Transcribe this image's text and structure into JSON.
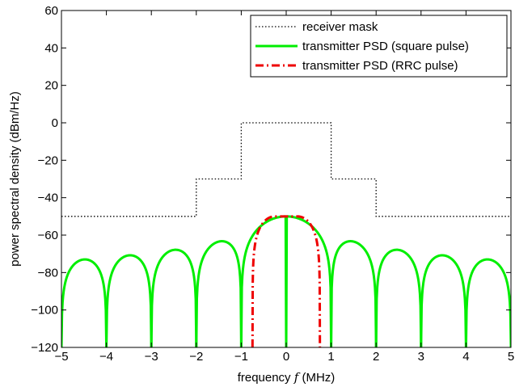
{
  "chart_data": {
    "type": "line",
    "title": "",
    "xlabel_prefix": "frequency ",
    "xlabel_var": "f",
    "xlabel_suffix": " (MHz)",
    "ylabel": "power spectral density (dBm/Hz)",
    "xlim": [
      -5,
      5
    ],
    "ylim": [
      -120,
      60
    ],
    "xticks": [
      -5,
      -4,
      -3,
      -2,
      -1,
      0,
      1,
      2,
      3,
      4,
      5
    ],
    "yticks": [
      -120,
      -100,
      -80,
      -60,
      -40,
      -20,
      0,
      20,
      40,
      60
    ],
    "x_tick_labels": [
      "−5",
      "−4",
      "−3",
      "−2",
      "−1",
      "0",
      "1",
      "2",
      "3",
      "4",
      "5"
    ],
    "y_tick_labels": [
      "−120",
      "−100",
      "−80",
      "−60",
      "−40",
      "−20",
      "0",
      "20",
      "40",
      "60"
    ],
    "grid": false,
    "legend_position": "top-right",
    "series": [
      {
        "name": "receiver mask",
        "color": "#000000",
        "style": "dotted",
        "x": [
          -5,
          -2,
          -2,
          -1,
          -1,
          1,
          1,
          2,
          2,
          5
        ],
        "y": [
          -50,
          -50,
          -30,
          -30,
          0,
          0,
          -30,
          -30,
          -50,
          -50
        ]
      },
      {
        "name": "transmitter PSD (square pulse)",
        "color": "#00ee00",
        "style": "solid",
        "formula": "-50 + 10*log10(sinc(f)^2)",
        "x_range": [
          -5,
          5
        ],
        "floor": -120
      },
      {
        "name": "transmitter PSD (RRC pulse)",
        "color": "#ee0000",
        "style": "dashdot",
        "formula": "-50 + 10*log10(RRC spectrum, symbol rate 1 MHz, roll-off 0.5)",
        "x_range": [
          -0.75,
          0.75
        ],
        "floor": -120,
        "rolloff": 0.5,
        "peak": -50
      }
    ]
  }
}
